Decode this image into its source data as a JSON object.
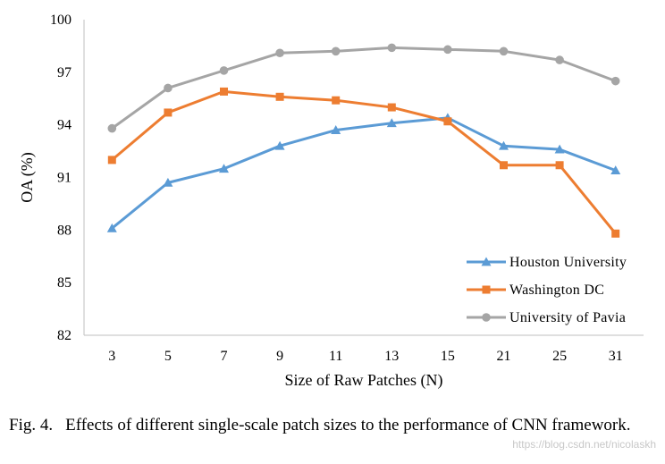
{
  "chart_data": {
    "type": "line",
    "title": "",
    "xlabel": "Size of Raw Patches (N)",
    "ylabel": "OA (%)",
    "categories": [
      "3",
      "5",
      "7",
      "9",
      "11",
      "13",
      "15",
      "21",
      "25",
      "31"
    ],
    "ylim": [
      82,
      100
    ],
    "yticks": [
      82,
      85,
      88,
      91,
      94,
      97,
      100
    ],
    "grid": false,
    "legend_position": "bottom-right",
    "series": [
      {
        "name": "Houston University",
        "color": "#5b9bd5",
        "marker": "triangle",
        "values": [
          88.1,
          90.7,
          91.5,
          92.8,
          93.7,
          94.1,
          94.4,
          92.8,
          92.6,
          91.4
        ]
      },
      {
        "name": "Washington DC",
        "color": "#ed7d31",
        "marker": "square",
        "values": [
          92.0,
          94.7,
          95.9,
          95.6,
          95.4,
          95.0,
          94.2,
          91.7,
          91.7,
          87.8
        ]
      },
      {
        "name": "University of Pavia",
        "color": "#a5a5a5",
        "marker": "circle",
        "values": [
          93.8,
          96.1,
          97.1,
          98.1,
          98.2,
          98.4,
          98.3,
          98.2,
          97.7,
          96.5
        ]
      }
    ]
  },
  "caption": {
    "label": "Fig. 4.",
    "text": "Effects of different single-scale patch sizes to the performance of CNN framework."
  },
  "watermark": "https://blog.csdn.net/nicolaskh"
}
